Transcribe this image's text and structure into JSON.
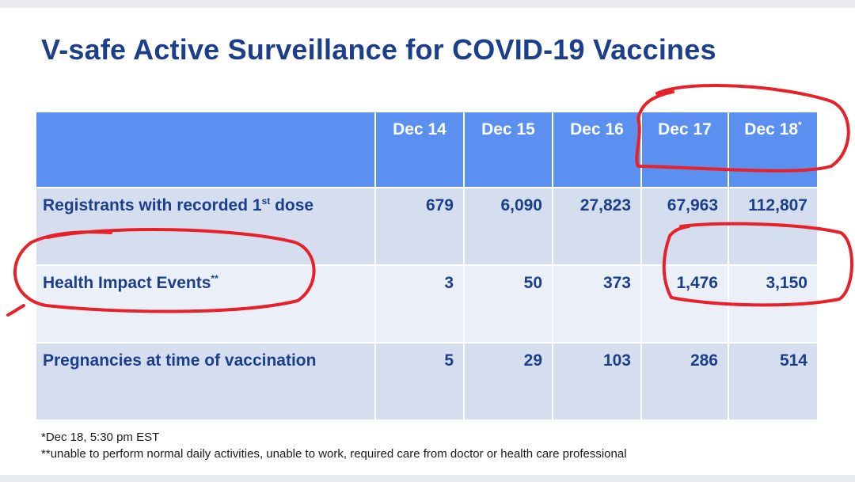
{
  "slide": {
    "title": "V-safe Active Surveillance for COVID-19 Vaccines"
  },
  "table": {
    "columns": [
      {
        "label": "Dec 14",
        "marker": ""
      },
      {
        "label": "Dec 15",
        "marker": ""
      },
      {
        "label": "Dec 16",
        "marker": ""
      },
      {
        "label": "Dec 17",
        "marker": ""
      },
      {
        "label": "Dec 18",
        "marker": "*"
      }
    ],
    "rows": [
      {
        "label_main": "Registrants with recorded 1",
        "label_sup": "st",
        "label_tail": " dose",
        "values": [
          "679",
          "6,090",
          "27,823",
          "67,963",
          "112,807"
        ]
      },
      {
        "label_main": "Health Impact Events",
        "label_sup": "**",
        "label_tail": "",
        "values": [
          "3",
          "50",
          "373",
          "1,476",
          "3,150"
        ]
      },
      {
        "label_main": "Pregnancies at time of vaccination",
        "label_sup": "",
        "label_tail": "",
        "values": [
          "5",
          "29",
          "103",
          "286",
          "514"
        ]
      }
    ]
  },
  "footnotes": {
    "note1_marker": "*",
    "note1_text": "Dec 18, 5:30 pm EST",
    "note2_marker": "**",
    "note2_text": "unable to perform normal daily activities, unable to work, required care from doctor or health care professional"
  },
  "annotations": {
    "ink_color": "#e8202a"
  },
  "colors": {
    "title": "#1b3f8b",
    "header_bg": "#5b8ff0",
    "row_dark": "#d5deef",
    "row_light": "#ebf0f8"
  }
}
